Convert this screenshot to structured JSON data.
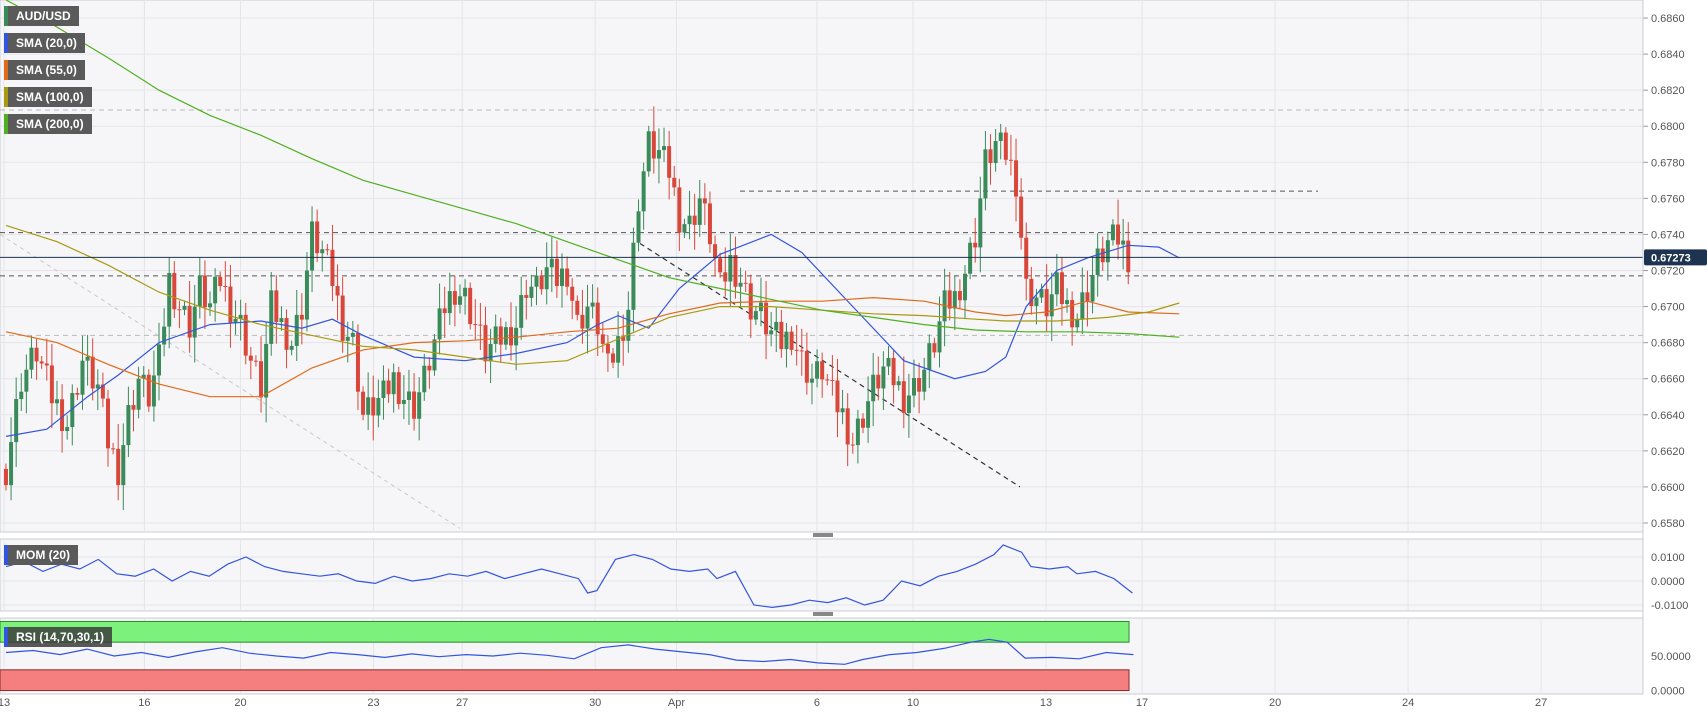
{
  "chart_data": [
    {
      "type": "candlestick",
      "title": "AUD/USD",
      "symbol_label": "AUD/USD",
      "last_price": "0.67273",
      "ylim": [
        0.6575,
        0.687
      ],
      "y_ticks": [
        "0.6860",
        "0.6840",
        "0.6820",
        "0.6800",
        "0.6780",
        "0.6760",
        "0.6740",
        "0.6720",
        "0.6700",
        "0.6680",
        "0.6660",
        "0.6640",
        "0.6620",
        "0.6600",
        "0.6580"
      ],
      "x_ticks": [
        "13",
        "16",
        "20",
        "23",
        "27",
        "30",
        "Apr",
        "6",
        "10",
        "13",
        "17",
        "20",
        "24",
        "27"
      ],
      "series_labels": [
        "SMA (20,0)",
        "SMA (55,0)",
        "SMA (100,0)",
        "SMA (200,0)"
      ],
      "series_colors": [
        "#3355dd",
        "#e06a1a",
        "#a89a10",
        "#50b020"
      ],
      "candle_colors": {
        "up": "#3a8a5a",
        "down": "#d9473a"
      },
      "horizontal_levels": [
        0.6809,
        0.6764,
        0.6741,
        0.6717,
        0.6684
      ],
      "last_price_value": 0.67273,
      "sma_20": [
        [
          0,
          0.6628
        ],
        [
          8,
          0.6632
        ],
        [
          16,
          0.665
        ],
        [
          22,
          0.6662
        ],
        [
          30,
          0.668
        ],
        [
          40,
          0.669
        ],
        [
          50,
          0.6692
        ],
        [
          58,
          0.6688
        ],
        [
          64,
          0.6693
        ],
        [
          70,
          0.6684
        ],
        [
          80,
          0.6672
        ],
        [
          90,
          0.667
        ],
        [
          100,
          0.6674
        ],
        [
          110,
          0.668
        ],
        [
          116,
          0.669
        ],
        [
          120,
          0.6695
        ],
        [
          126,
          0.6688
        ],
        [
          132,
          0.671
        ],
        [
          140,
          0.6729
        ],
        [
          150,
          0.674
        ],
        [
          156,
          0.673
        ],
        [
          166,
          0.67
        ],
        [
          176,
          0.667
        ],
        [
          186,
          0.666
        ],
        [
          192,
          0.6664
        ],
        [
          196,
          0.6672
        ],
        [
          200,
          0.67
        ],
        [
          206,
          0.672
        ],
        [
          212,
          0.6727
        ],
        [
          220,
          0.6734
        ],
        [
          226,
          0.6733
        ],
        [
          230,
          0.6727
        ]
      ],
      "sma_55": [
        [
          0,
          0.6686
        ],
        [
          10,
          0.668
        ],
        [
          20,
          0.6668
        ],
        [
          30,
          0.6657
        ],
        [
          40,
          0.665
        ],
        [
          50,
          0.665
        ],
        [
          60,
          0.6666
        ],
        [
          70,
          0.6676
        ],
        [
          80,
          0.668
        ],
        [
          90,
          0.6681
        ],
        [
          100,
          0.6683
        ],
        [
          110,
          0.6686
        ],
        [
          120,
          0.6688
        ],
        [
          130,
          0.6696
        ],
        [
          140,
          0.6702
        ],
        [
          150,
          0.6703
        ],
        [
          160,
          0.6703
        ],
        [
          170,
          0.6705
        ],
        [
          180,
          0.6703
        ],
        [
          190,
          0.6697
        ],
        [
          196,
          0.6695
        ],
        [
          204,
          0.6697
        ],
        [
          212,
          0.6703
        ],
        [
          220,
          0.6697
        ],
        [
          230,
          0.6696
        ]
      ],
      "sma_100": [
        [
          0,
          0.6745
        ],
        [
          10,
          0.6736
        ],
        [
          20,
          0.6723
        ],
        [
          30,
          0.6708
        ],
        [
          40,
          0.6698
        ],
        [
          50,
          0.669
        ],
        [
          60,
          0.6684
        ],
        [
          70,
          0.6678
        ],
        [
          80,
          0.6676
        ],
        [
          90,
          0.6672
        ],
        [
          100,
          0.6668
        ],
        [
          110,
          0.667
        ],
        [
          120,
          0.6682
        ],
        [
          130,
          0.6694
        ],
        [
          140,
          0.67
        ],
        [
          150,
          0.67
        ],
        [
          160,
          0.6698
        ],
        [
          170,
          0.6696
        ],
        [
          180,
          0.6695
        ],
        [
          190,
          0.6693
        ],
        [
          196,
          0.6692
        ],
        [
          206,
          0.6692
        ],
        [
          216,
          0.6694
        ],
        [
          224,
          0.6697
        ],
        [
          230,
          0.6702
        ]
      ],
      "sma_200": [
        [
          0,
          0.687
        ],
        [
          10,
          0.6855
        ],
        [
          20,
          0.6838
        ],
        [
          30,
          0.682
        ],
        [
          40,
          0.6806
        ],
        [
          50,
          0.6795
        ],
        [
          60,
          0.6782
        ],
        [
          70,
          0.677
        ],
        [
          80,
          0.6762
        ],
        [
          90,
          0.6754
        ],
        [
          100,
          0.6746
        ],
        [
          110,
          0.6736
        ],
        [
          120,
          0.6726
        ],
        [
          130,
          0.6716
        ],
        [
          140,
          0.671
        ],
        [
          150,
          0.6704
        ],
        [
          160,
          0.6698
        ],
        [
          170,
          0.6694
        ],
        [
          180,
          0.669
        ],
        [
          190,
          0.6687
        ],
        [
          200,
          0.6686
        ],
        [
          210,
          0.6686
        ],
        [
          220,
          0.6685
        ],
        [
          230,
          0.6683
        ]
      ]
    },
    {
      "type": "line",
      "title": "MOM (20)",
      "series_labels": [
        "MOM (20)"
      ],
      "y_ticks": [
        "0.0100",
        "0.0000",
        "-0.0100"
      ],
      "ylim": [
        -0.0125,
        0.0175
      ],
      "series_colors": [
        "#3355dd"
      ],
      "values": [
        [
          0,
          0.006
        ],
        [
          4,
          0.008
        ],
        [
          8,
          0.004
        ],
        [
          12,
          0.007
        ],
        [
          16,
          0.005
        ],
        [
          20,
          0.009
        ],
        [
          24,
          0.003
        ],
        [
          28,
          0.002
        ],
        [
          32,
          0.005
        ],
        [
          36,
          0.0
        ],
        [
          40,
          0.004
        ],
        [
          44,
          0.002
        ],
        [
          48,
          0.007
        ],
        [
          52,
          0.01
        ],
        [
          56,
          0.006
        ],
        [
          60,
          0.004
        ],
        [
          64,
          0.003
        ],
        [
          68,
          0.002
        ],
        [
          72,
          0.003
        ],
        [
          76,
          0.0
        ],
        [
          80,
          -0.001
        ],
        [
          84,
          0.002
        ],
        [
          88,
          0.0
        ],
        [
          92,
          0.001
        ],
        [
          96,
          0.003
        ],
        [
          100,
          0.002
        ],
        [
          104,
          0.004
        ],
        [
          108,
          0.001
        ],
        [
          112,
          0.003
        ],
        [
          116,
          0.005
        ],
        [
          120,
          0.003
        ],
        [
          124,
          0.001
        ],
        [
          126,
          -0.005
        ],
        [
          128,
          -0.004
        ],
        [
          132,
          0.009
        ],
        [
          136,
          0.011
        ],
        [
          140,
          0.009
        ],
        [
          144,
          0.005
        ],
        [
          148,
          0.004
        ],
        [
          152,
          0.005
        ],
        [
          154,
          0.001
        ],
        [
          158,
          0.004
        ],
        [
          162,
          -0.01
        ],
        [
          166,
          -0.011
        ],
        [
          170,
          -0.01
        ],
        [
          174,
          -0.008
        ],
        [
          178,
          -0.009
        ],
        [
          182,
          -0.007
        ],
        [
          186,
          -0.01
        ],
        [
          190,
          -0.008
        ],
        [
          194,
          0.0
        ],
        [
          198,
          -0.002
        ],
        [
          202,
          0.002
        ],
        [
          206,
          0.004
        ],
        [
          210,
          0.007
        ],
        [
          214,
          0.011
        ],
        [
          216,
          0.015
        ],
        [
          220,
          0.012
        ],
        [
          222,
          0.006
        ],
        [
          226,
          0.005
        ],
        [
          230,
          0.006
        ],
        [
          232,
          0.003
        ],
        [
          236,
          0.004
        ],
        [
          240,
          0.001
        ],
        [
          244,
          -0.005
        ]
      ]
    },
    {
      "type": "line",
      "title": "RSI (14,70,30,1)",
      "series_labels": [
        "RSI (14,70,30,1)"
      ],
      "y_ticks": [
        "50.0000",
        "0.0000"
      ],
      "ylim": [
        -5,
        105
      ],
      "overbought": 70,
      "oversold": 30,
      "series_colors": [
        "#3355dd"
      ],
      "band_colors": {
        "overbought": "#7cf27c",
        "oversold": "#f57f7f"
      },
      "values": [
        [
          0,
          55
        ],
        [
          6,
          58
        ],
        [
          12,
          52
        ],
        [
          18,
          60
        ],
        [
          24,
          50
        ],
        [
          30,
          55
        ],
        [
          36,
          48
        ],
        [
          42,
          56
        ],
        [
          48,
          62
        ],
        [
          54,
          54
        ],
        [
          60,
          50
        ],
        [
          66,
          47
        ],
        [
          72,
          55
        ],
        [
          78,
          52
        ],
        [
          84,
          48
        ],
        [
          90,
          53
        ],
        [
          96,
          49
        ],
        [
          102,
          52
        ],
        [
          108,
          50
        ],
        [
          114,
          54
        ],
        [
          120,
          51
        ],
        [
          126,
          46
        ],
        [
          132,
          62
        ],
        [
          138,
          66
        ],
        [
          144,
          60
        ],
        [
          150,
          56
        ],
        [
          156,
          52
        ],
        [
          162,
          44
        ],
        [
          168,
          42
        ],
        [
          174,
          45
        ],
        [
          180,
          40
        ],
        [
          186,
          38
        ],
        [
          190,
          45
        ],
        [
          196,
          52
        ],
        [
          202,
          55
        ],
        [
          208,
          61
        ],
        [
          214,
          70
        ],
        [
          218,
          74
        ],
        [
          222,
          70
        ],
        [
          226,
          47
        ],
        [
          232,
          48
        ],
        [
          238,
          46
        ],
        [
          244,
          55
        ],
        [
          250,
          52
        ]
      ]
    }
  ]
}
